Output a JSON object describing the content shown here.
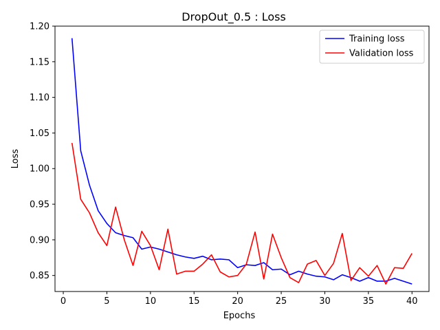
{
  "chart_data": {
    "type": "line",
    "title": "DropOut_0.5 : Loss",
    "xlabel": "Epochs",
    "ylabel": "Loss",
    "xlim": [
      -0.95,
      41.95
    ],
    "ylim": [
      0.8275,
      1.2
    ],
    "xticks": [
      0,
      5,
      10,
      15,
      20,
      25,
      30,
      35,
      40
    ],
    "yticks": [
      0.85,
      0.9,
      0.95,
      1.0,
      1.05,
      1.1,
      1.15,
      1.2
    ],
    "ytick_labels": [
      "0.85",
      "0.90",
      "0.95",
      "1.00",
      "1.05",
      "1.10",
      "1.15",
      "1.20"
    ],
    "grid": false,
    "legend_position": "top-right",
    "x": [
      1,
      2,
      3,
      4,
      5,
      6,
      7,
      8,
      9,
      10,
      11,
      12,
      13,
      14,
      15,
      16,
      17,
      18,
      19,
      20,
      21,
      22,
      23,
      24,
      25,
      26,
      27,
      28,
      29,
      30,
      31,
      32,
      33,
      34,
      35,
      36,
      37,
      38,
      39,
      40
    ],
    "series": [
      {
        "name": "Training loss",
        "color": "#0000ff",
        "values": [
          1.183,
          1.025,
          0.977,
          0.941,
          0.923,
          0.91,
          0.906,
          0.903,
          0.887,
          0.89,
          0.887,
          0.883,
          0.879,
          0.876,
          0.874,
          0.877,
          0.872,
          0.873,
          0.872,
          0.861,
          0.865,
          0.864,
          0.868,
          0.858,
          0.859,
          0.851,
          0.856,
          0.852,
          0.849,
          0.848,
          0.844,
          0.851,
          0.847,
          0.842,
          0.847,
          0.842,
          0.842,
          0.846,
          0.842,
          0.838
        ]
      },
      {
        "name": "Validation loss",
        "color": "#ff0000",
        "values": [
          1.036,
          0.957,
          0.938,
          0.91,
          0.892,
          0.946,
          0.9,
          0.864,
          0.912,
          0.892,
          0.858,
          0.915,
          0.852,
          0.856,
          0.856,
          0.866,
          0.879,
          0.855,
          0.848,
          0.85,
          0.866,
          0.911,
          0.845,
          0.908,
          0.875,
          0.847,
          0.84,
          0.866,
          0.871,
          0.85,
          0.867,
          0.909,
          0.843,
          0.861,
          0.849,
          0.864,
          0.838,
          0.861,
          0.86,
          0.881
        ]
      }
    ]
  }
}
